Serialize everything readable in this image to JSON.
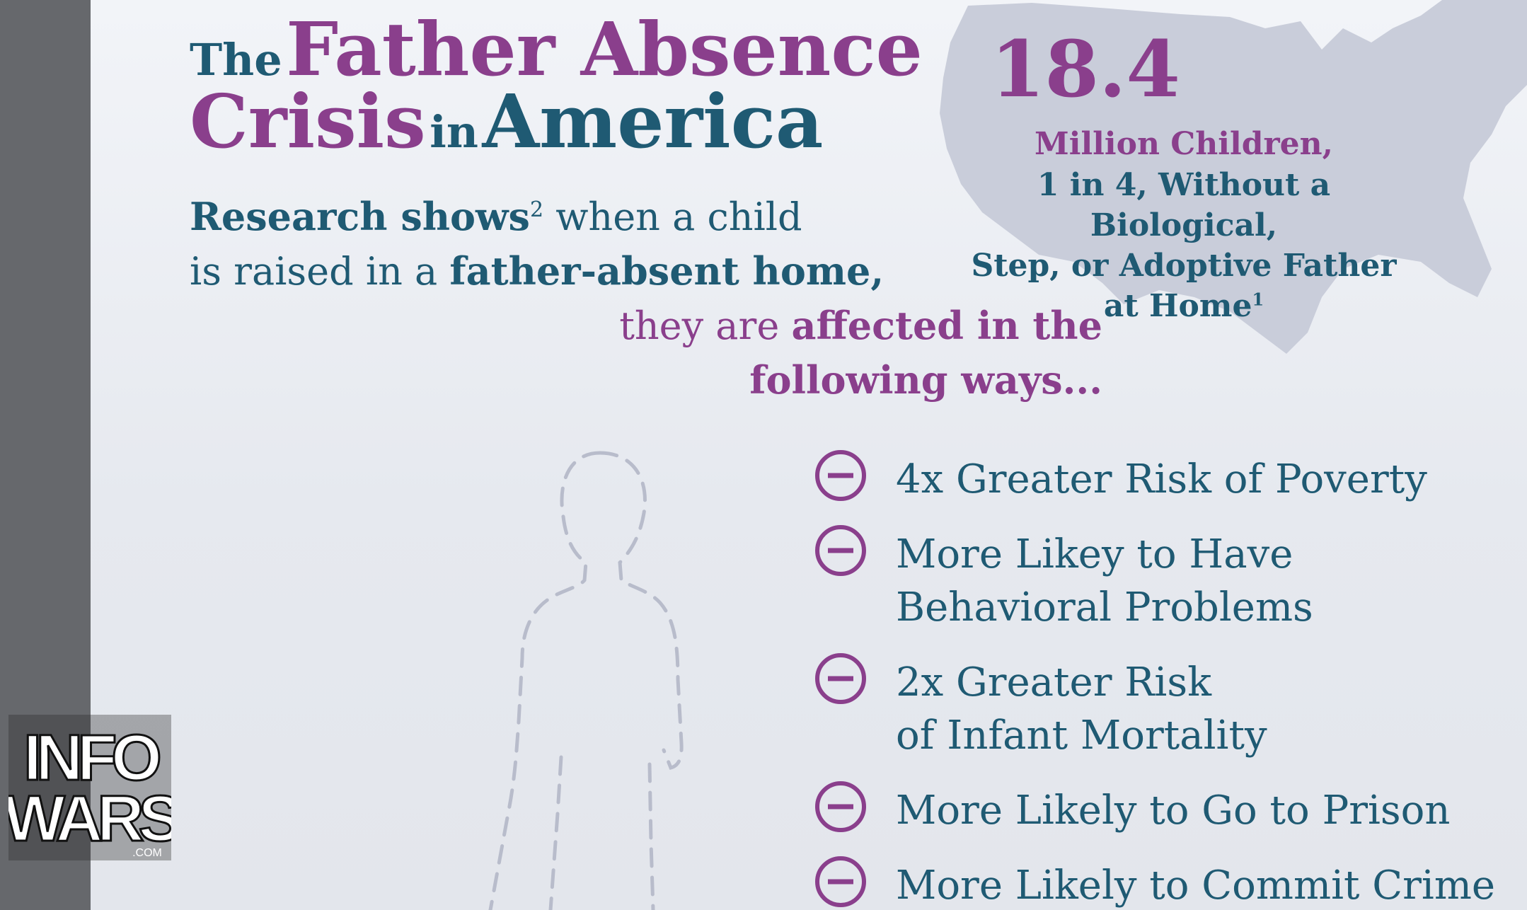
{
  "title": {
    "the": "The",
    "father_absence": "Father Absence",
    "crisis": "Crisis",
    "in": "in",
    "america": "America"
  },
  "stat": {
    "number": "18.4",
    "line1": "Million Children,",
    "line2": "1 in 4, Without a Biological,",
    "line3": "Step, or Adoptive Father",
    "line4": "at Home",
    "footnote": "1"
  },
  "research": {
    "research_shows": "Research shows",
    "footnote": "2",
    "when_a_child": " when a child",
    "is_raised_in_a": "is raised in a ",
    "father_absent_home": "father-absent home,",
    "they_are": "they are ",
    "affected_in_the": "affected in the",
    "following_ways": "following ways..."
  },
  "effects": [
    {
      "text": "4x Greater Risk of Poverty"
    },
    {
      "text": "More Likey to Have\nBehavioral Problems"
    },
    {
      "text": "2x Greater Risk\nof Infant Mortality"
    },
    {
      "text": "More Likely to Go to Prison"
    },
    {
      "text": "More Likely to Commit Crime"
    }
  ],
  "logo": {
    "line1": "INFO",
    "line2": "WARS",
    "suffix": ".COM"
  },
  "colors": {
    "purple": "#8a3f8c",
    "teal": "#1f5a73",
    "side_bar": "#66686c",
    "map": "#c9cdda"
  },
  "icons": {
    "effect_bullet": "minus-circle-icon",
    "figure": "dashed-child-silhouette",
    "map": "usa-map-silhouette"
  }
}
